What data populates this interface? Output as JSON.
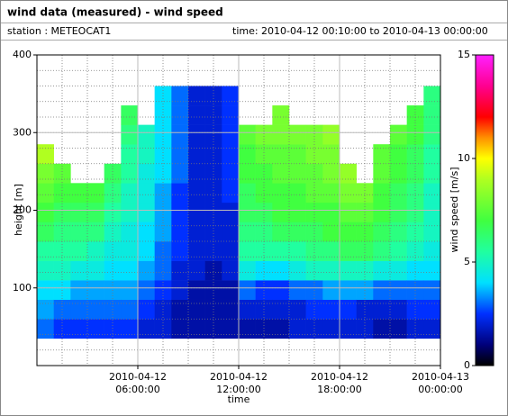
{
  "chart_data": {
    "type": "heatmap",
    "title": "wind data (measured) - wind speed",
    "station": "station : METEOCAT1",
    "time_range": "time: 2010-04-12 00:10:00 to 2010-04-13 00:00:00",
    "xlabel": "time",
    "ylabel": "height [m]",
    "colorbar_label": "wind speed [m/s]",
    "xlim": [
      0,
      24
    ],
    "xticks": [
      {
        "value": 6,
        "label": "2010-04-12 06:00:00"
      },
      {
        "value": 12,
        "label": "2010-04-12 12:00:00"
      },
      {
        "value": 18,
        "label": "2010-04-12 18:00:00"
      },
      {
        "value": 24,
        "label": "2010-04-13 00:00:00"
      }
    ],
    "ylim": [
      0,
      400
    ],
    "yticks": [
      100,
      200,
      300,
      400
    ],
    "ygrid_minor_step": 20,
    "xgrid_minor_step": 1.5,
    "grid": true,
    "clim": [
      0,
      15
    ],
    "cticks": [
      0,
      5,
      10,
      15
    ],
    "colorscale": [
      [
        0,
        "#000000"
      ],
      [
        1,
        "#00007a"
      ],
      [
        2.5,
        "#0030ff"
      ],
      [
        4,
        "#00e0ff"
      ],
      [
        5.5,
        "#20ffa0"
      ],
      [
        7,
        "#40ff40"
      ],
      [
        9,
        "#b0ff20"
      ],
      [
        10,
        "#ffff00"
      ],
      [
        11,
        "#ff9000"
      ],
      [
        12,
        "#ff0000"
      ],
      [
        13.5,
        "#ff0090"
      ],
      [
        15,
        "#ff20ff"
      ]
    ],
    "x_edges": [
      0,
      1,
      2,
      3,
      4,
      5,
      6,
      7,
      8,
      9,
      10,
      11,
      12,
      13,
      14,
      15,
      16,
      17,
      18,
      19,
      20,
      21,
      22,
      23,
      24
    ],
    "y_edges": [
      35,
      60,
      85,
      110,
      135,
      160,
      185,
      210,
      235,
      260,
      285,
      310,
      335,
      360
    ],
    "z": [
      [
        3,
        3.5,
        4,
        5,
        5.5,
        6.5,
        7,
        7.5,
        8,
        9,
        null,
        null,
        null
      ],
      [
        2.5,
        3,
        4,
        5,
        5.5,
        6,
        6.5,
        7,
        7.5,
        null,
        null,
        null,
        null
      ],
      [
        2.5,
        3,
        3.5,
        4.5,
        5.5,
        6,
        6.5,
        7,
        null,
        null,
        null,
        null,
        null
      ],
      [
        2.5,
        3,
        3.5,
        4.5,
        5,
        6,
        6.5,
        7,
        null,
        null,
        null,
        null,
        null
      ],
      [
        2.5,
        3,
        3.5,
        4,
        4.5,
        5,
        5.5,
        6,
        6.5,
        null,
        null,
        null,
        null
      ],
      [
        2.5,
        3,
        3.5,
        4,
        4.5,
        4.5,
        5,
        5,
        5.5,
        5.5,
        6,
        6.5,
        null
      ],
      [
        2,
        2.5,
        3,
        3.5,
        4,
        4,
        4.5,
        4.5,
        4.5,
        5,
        5,
        null,
        null
      ],
      [
        2,
        2,
        2.5,
        3,
        3,
        3.5,
        3.5,
        3.5,
        4,
        4,
        4,
        4,
        4
      ],
      [
        1.5,
        1.5,
        2,
        2,
        2.5,
        2.5,
        2.5,
        2.5,
        3,
        3,
        3,
        3,
        3
      ],
      [
        1.5,
        1.5,
        1.5,
        2,
        2,
        2,
        2,
        2,
        2,
        2,
        2,
        2,
        2
      ],
      [
        1.5,
        1.5,
        1.5,
        1.5,
        2,
        2,
        2,
        2,
        2,
        2,
        2,
        2,
        2
      ],
      [
        1.5,
        1.5,
        1.5,
        2,
        2,
        2,
        2,
        2.5,
        2.5,
        2.5,
        2.5,
        2.5,
        2.5
      ],
      [
        1.5,
        2,
        3,
        4.5,
        5.5,
        6,
        6.5,
        6.5,
        7,
        7,
        7.5,
        null,
        null
      ],
      [
        1.5,
        2,
        2.5,
        4,
        5.5,
        6,
        6.5,
        7,
        7,
        7.5,
        8,
        null,
        null
      ],
      [
        1.5,
        2,
        2.5,
        4,
        5.5,
        6.5,
        7,
        7,
        7.5,
        7.5,
        8,
        8,
        null
      ],
      [
        2,
        2,
        3,
        4.5,
        5.5,
        6.5,
        7,
        7,
        7.5,
        7.5,
        8,
        null,
        null
      ],
      [
        2,
        2.5,
        3,
        5,
        6,
        6.5,
        7,
        7.5,
        7.5,
        8,
        8,
        null,
        null
      ],
      [
        2,
        2.5,
        3.5,
        5,
        6,
        7,
        7,
        7.5,
        8,
        8,
        8.5,
        null,
        null
      ],
      [
        2,
        2.5,
        3.5,
        5,
        6.5,
        7,
        7.5,
        8,
        8.5,
        null,
        null,
        null,
        null
      ],
      [
        2,
        2,
        3.5,
        5,
        6.5,
        7,
        7.5,
        8,
        null,
        null,
        null,
        null,
        null
      ],
      [
        1.5,
        2,
        3,
        4.5,
        6,
        6.5,
        7,
        7,
        7.5,
        7.5,
        null,
        null,
        null
      ],
      [
        1.5,
        2,
        3,
        4.5,
        5.5,
        6,
        6.5,
        6.5,
        7,
        7,
        7.5,
        null,
        null
      ],
      [
        2,
        2.5,
        3,
        4,
        5,
        5.5,
        6,
        6,
        6.5,
        6.5,
        7,
        7,
        null
      ],
      [
        2,
        2.5,
        3,
        4,
        4.5,
        5,
        5,
        5,
        5.5,
        5.5,
        6,
        6,
        6
      ]
    ]
  }
}
